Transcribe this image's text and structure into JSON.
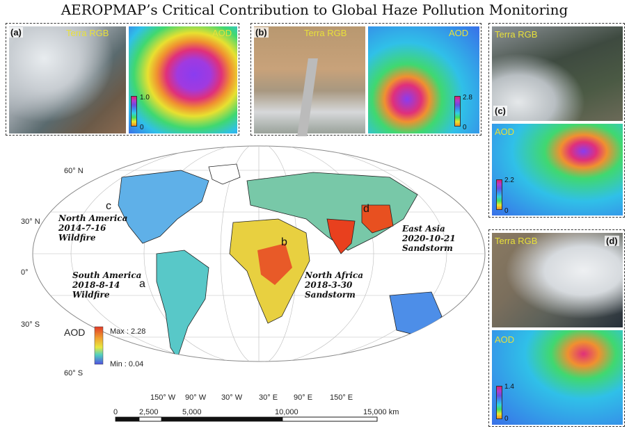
{
  "title": "AEROPMAP’s Critical Contribution to Global Haze Pollution Monitoring",
  "panels": {
    "a": {
      "label": "(a)",
      "rgb": "Terra RGB",
      "aod": "AOD",
      "cmax": "1.0",
      "cmin": "0"
    },
    "b": {
      "label": "(b)",
      "rgb": "Terra RGB",
      "aod": "AOD",
      "cmax": "2.8",
      "cmin": "0"
    },
    "c": {
      "label": "(c)",
      "rgb": "Terra RGB",
      "aod": "AOD",
      "cmax": "2.2",
      "cmin": "0"
    },
    "d": {
      "label": "(d)",
      "rgb": "Terra RGB",
      "aod": "AOD",
      "cmax": "1.4",
      "cmin": "0"
    }
  },
  "map": {
    "lat_labels": [
      "60° N",
      "30° N",
      "0°",
      "30° S",
      "60° S"
    ],
    "lon_labels": [
      "150° W",
      "90° W",
      "30° W",
      "30° E",
      "90° E",
      "150° E"
    ],
    "events": {
      "c": {
        "letter": "c",
        "lines": [
          "North America",
          "2014-7-16",
          "Wildfire"
        ]
      },
      "a": {
        "letter": "a",
        "lines": [
          "South America",
          "2018-8-14",
          "Wildfire"
        ]
      },
      "b": {
        "letter": "b",
        "lines": [
          "North Africa",
          "2018-3-30",
          "Sandstorm"
        ]
      },
      "d": {
        "letter": "d",
        "lines": [
          "East Asia",
          "2020-10-21",
          "Sandstorm"
        ]
      }
    },
    "legend": {
      "title": "AOD",
      "max": "Max : 2.28",
      "min": "Min : 0.04"
    },
    "scale": {
      "ticks": [
        "0",
        "2,500",
        "5,000",
        "10,000",
        "15,000 km"
      ]
    }
  }
}
